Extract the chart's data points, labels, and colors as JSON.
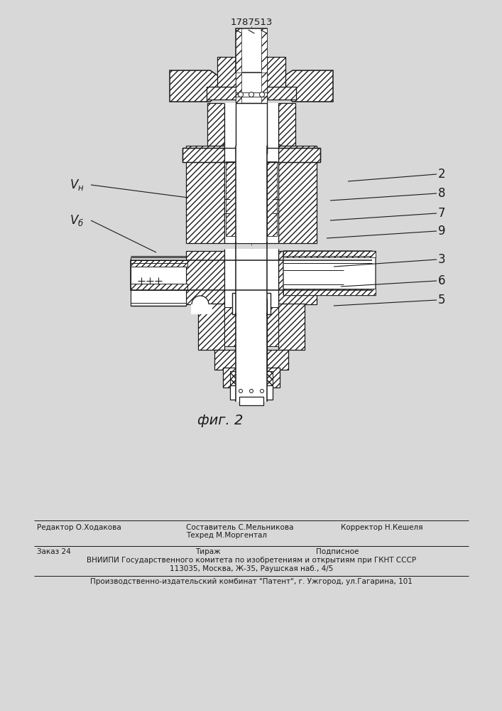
{
  "patent_number": "1787513",
  "fig_label": "фиг. 2",
  "background_color": "#d8d8d8",
  "line_color": "#1a1a1a",
  "footer": {
    "editor": "Редактор О.Ходакова",
    "composer": "Составитель С.Мельникова",
    "techred": "Техред М.Моргентал",
    "corrector": "Корректор Н.Кешеля",
    "order": "Заказ 24",
    "tiraz": "Тираж",
    "podpisnoe": "Подписное",
    "vnipi_line1": "ВНИИПИ Государственного комитета по изобретениям и открытиям при ГКНТ СССР",
    "vnipi_line2": "113035, Москва, Ж-35, Раушская наб., 4/5",
    "production": "Производственно-издательский комбинат \"Патент\", г. Ужгород, ул.Гагарина, 101"
  }
}
